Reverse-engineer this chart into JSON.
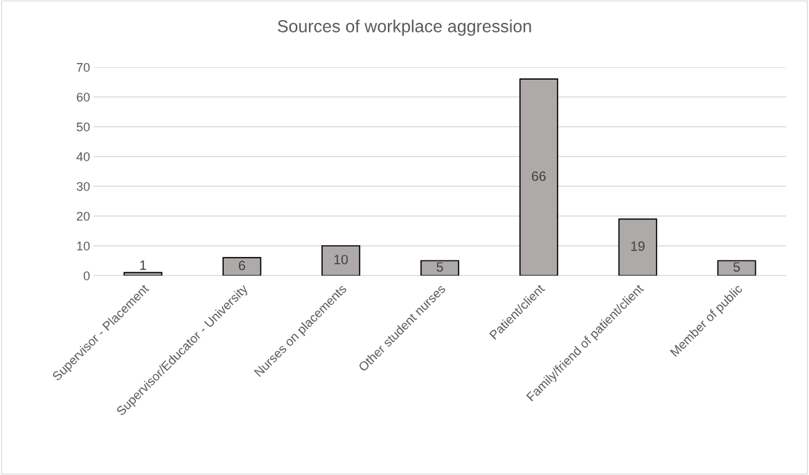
{
  "chart_data": {
    "type": "bar",
    "title": "Sources of workplace aggression",
    "categories": [
      "Supervisor - Placement",
      "Supervisor/Educator - University",
      "Nurses on placements",
      "Other student nurses",
      "Patient/client",
      "Family/friend of patient/client",
      "Member of public"
    ],
    "values": [
      1,
      6,
      10,
      5,
      66,
      19,
      5
    ],
    "color": "#aeaaaa",
    "ylim": [
      0,
      70
    ],
    "yticks": [
      0,
      10,
      20,
      30,
      40,
      50,
      60,
      70
    ],
    "grid": "y",
    "data_labels": true
  }
}
